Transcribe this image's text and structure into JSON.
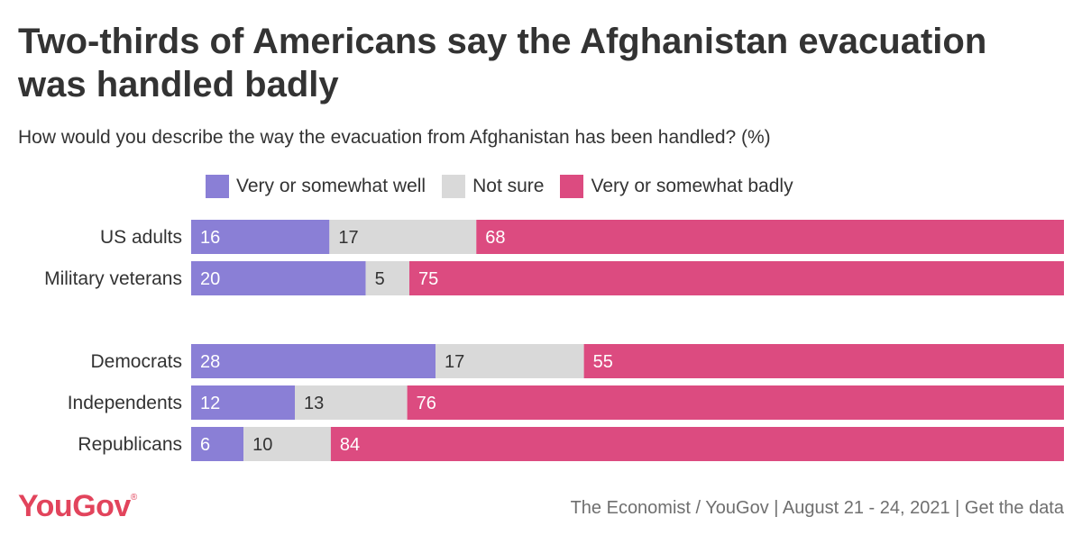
{
  "title": "Two-thirds of Americans say the Afghanistan evacuation was handled badly",
  "subtitle": "How would you describe the way the evacuation from Afghanistan has been handled? (%)",
  "colors": {
    "well": "#8a7fd6",
    "not_sure": "#d9d9d9",
    "badly": "#dc4b80",
    "text": "#333333"
  },
  "chart_data": {
    "type": "bar",
    "orientation": "horizontal",
    "stacked": true,
    "title": "Two-thirds of Americans say the Afghanistan evacuation was handled badly",
    "subtitle": "How would you describe the way the evacuation from Afghanistan has been handled? (%)",
    "categories": [
      "US adults",
      "Military veterans",
      "Democrats",
      "Independents",
      "Republicans"
    ],
    "groups": [
      [
        "US adults",
        "Military veterans"
      ],
      [
        "Democrats",
        "Independents",
        "Republicans"
      ]
    ],
    "series": [
      {
        "name": "Very or somewhat well",
        "key": "well",
        "values": [
          16,
          20,
          28,
          12,
          6
        ]
      },
      {
        "name": "Not sure",
        "key": "not_sure",
        "values": [
          17,
          5,
          17,
          13,
          10
        ]
      },
      {
        "name": "Very or somewhat badly",
        "key": "badly",
        "values": [
          68,
          75,
          55,
          76,
          84
        ]
      }
    ],
    "xlim": [
      0,
      100
    ],
    "legend": "top",
    "unit": "%"
  },
  "footer": {
    "logo": "YouGov",
    "source": "The Economist / YouGov | August 21 - 24, 2021 | Get the data"
  }
}
